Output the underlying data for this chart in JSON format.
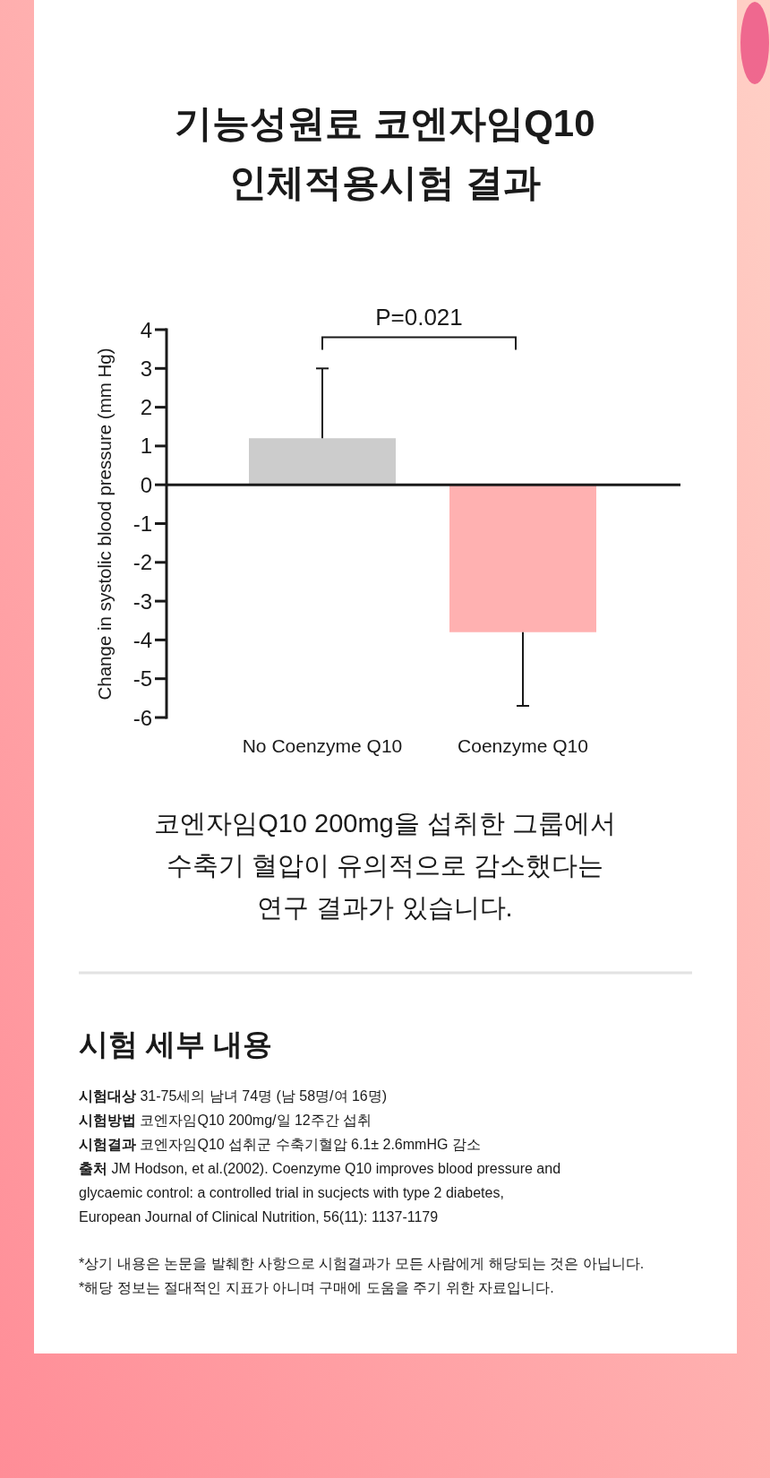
{
  "chart_data": {
    "type": "bar",
    "title": "기능성원료 코엔자임Q10\n인체적용시험 결과",
    "ylabel": "Change in systolic blood pressure (mm Hg)",
    "categories": [
      "No Coenzyme Q10",
      "Coenzyme Q10"
    ],
    "values": [
      1.2,
      -3.8
    ],
    "colors": [
      "#cccccc",
      "#ffb1b1"
    ],
    "errors": [
      [
        1.2,
        3.0
      ],
      [
        -5.7,
        -3.8
      ]
    ],
    "ylim": [
      -6,
      4
    ],
    "yticks": [
      -6,
      -5,
      -4,
      -3,
      -2,
      -1,
      0,
      1,
      2,
      3,
      4
    ],
    "annotations": [
      "P=0.021",
      "코엔자임Q10 200mg을 섭취한 그룹에서\n수축기 혈압이 유의적으로 감소했다는\n연구 결과가 있습니다.",
      "시험 세부 내용",
      "시험대상 31-75세의 남녀 74명 (남 58명/여 16명)",
      "시험방법 코엔자임Q10 200mg/일 12주간 섭취",
      "시험결과 코엔자임Q10 섭취군 수축기혈압 6.1± 2.6mmHG 감소",
      "출처 JM Hodson, et al.(2002). Coenzyme Q10 improves blood pressure and\nglycaemic control: a controlled trial in sucjects with type 2 diabetes,\nEuropean Journal of Clinical Nutrition, 56(11): 1137-1179",
      "*상기 내용은 논문을 발췌한 사항으로 시험결과가 모든 사람에게 해당되는 것은 아닙니다.",
      "*해당 정보는 절대적인 지표가 아니며 구매에 도움을 주기 위한 자료입니다."
    ]
  }
}
